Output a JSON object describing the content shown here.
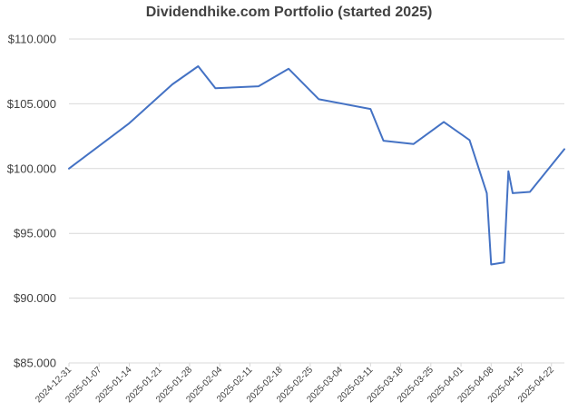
{
  "chart_data": {
    "type": "line",
    "title": "Dividendhike.com Portfolio (started 2025)",
    "xlabel": "",
    "ylabel": "",
    "ylim": [
      85,
      110
    ],
    "y_ticks": [
      "$85.000",
      "$90.000",
      "$95.000",
      "$100.000",
      "$105.000",
      "$110.000"
    ],
    "y_tick_values": [
      85,
      90,
      95,
      100,
      105,
      110
    ],
    "x_ticks": [
      "2024-12-31",
      "2025-01-07",
      "2025-01-14",
      "2025-01-21",
      "2025-01-28",
      "2025-02-04",
      "2025-02-11",
      "2025-02-18",
      "2025-02-25",
      "2025-03-04",
      "2025-03-11",
      "2025-03-18",
      "2025-03-25",
      "2025-04-01",
      "2025-04-08",
      "2025-04-15",
      "2025-04-22"
    ],
    "x_range": [
      "2024-12-31",
      "2025-04-25"
    ],
    "grid": "horizontal",
    "line_color": "#4472C4",
    "series": [
      {
        "x": [
          "2024-12-31",
          "2025-01-14",
          "2025-01-24",
          "2025-01-30",
          "2025-02-03",
          "2025-02-13",
          "2025-02-20",
          "2025-02-27",
          "2025-03-11",
          "2025-03-14",
          "2025-03-21",
          "2025-03-28",
          "2025-04-03",
          "2025-04-07",
          "2025-04-08",
          "2025-04-11",
          "2025-04-12",
          "2025-04-13",
          "2025-04-17",
          "2025-04-25"
        ],
        "y": [
          100.0,
          103.5,
          106.5,
          107.9,
          106.2,
          106.35,
          107.7,
          105.35,
          104.6,
          102.15,
          101.9,
          103.6,
          102.2,
          98.1,
          92.6,
          92.75,
          99.8,
          98.1,
          98.2,
          101.5
        ]
      }
    ]
  }
}
